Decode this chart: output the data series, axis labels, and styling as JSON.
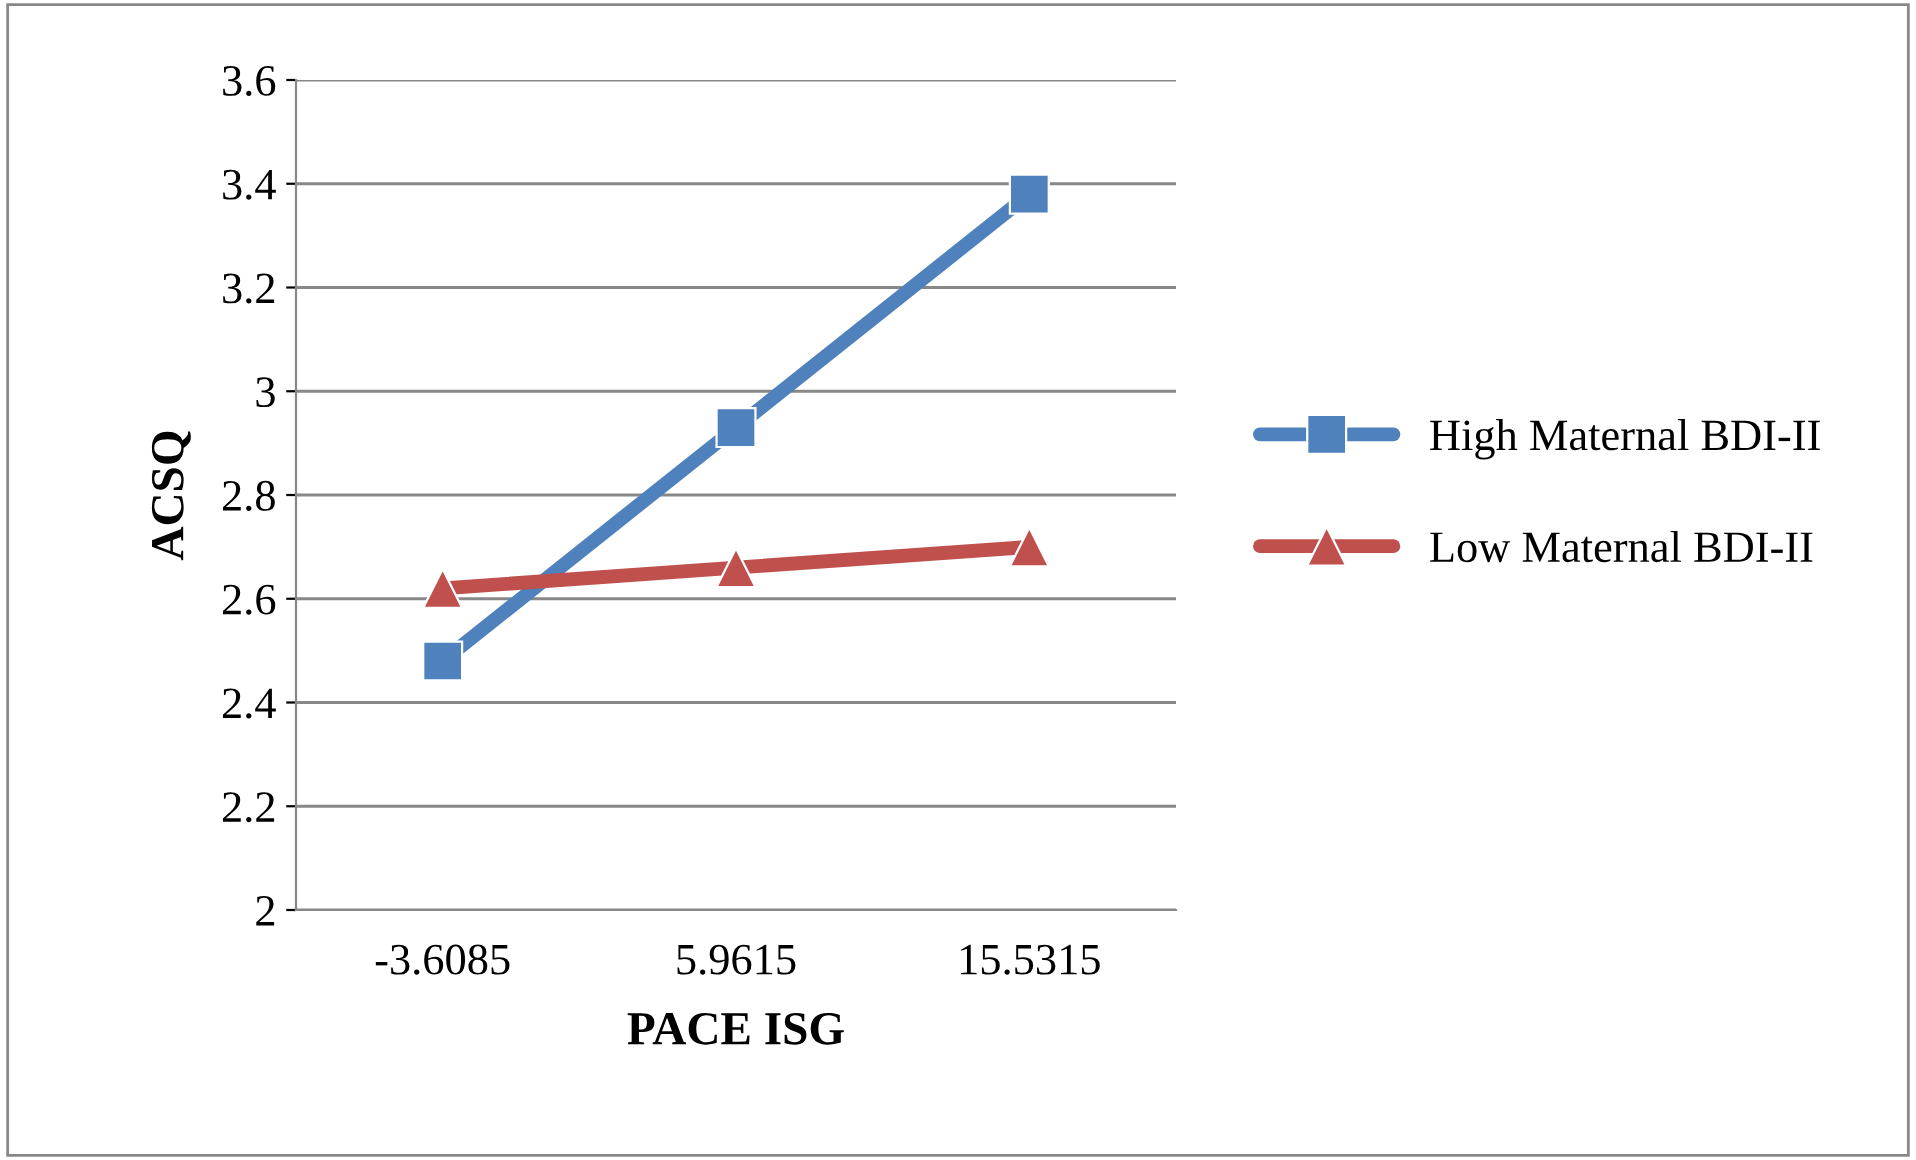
{
  "chart_data": {
    "type": "line",
    "xlabel": "PACE ISG",
    "ylabel": "ACSQ",
    "categories": [
      "-3.6085",
      "5.9615",
      "15.5315"
    ],
    "series": [
      {
        "name": "High Maternal BDI-II",
        "color": "#4f81bd",
        "marker": "square",
        "values": [
          2.48,
          2.93,
          3.38
        ]
      },
      {
        "name": "Low Maternal BDI-II",
        "color": "#c0504d",
        "marker": "triangle",
        "values": [
          2.62,
          2.66,
          2.7
        ]
      }
    ],
    "ylim": [
      2,
      3.6
    ],
    "yticks": [
      2,
      2.2,
      2.4,
      2.6,
      2.8,
      3,
      3.2,
      3.4,
      3.6
    ],
    "grid": "y",
    "legend": "right"
  }
}
